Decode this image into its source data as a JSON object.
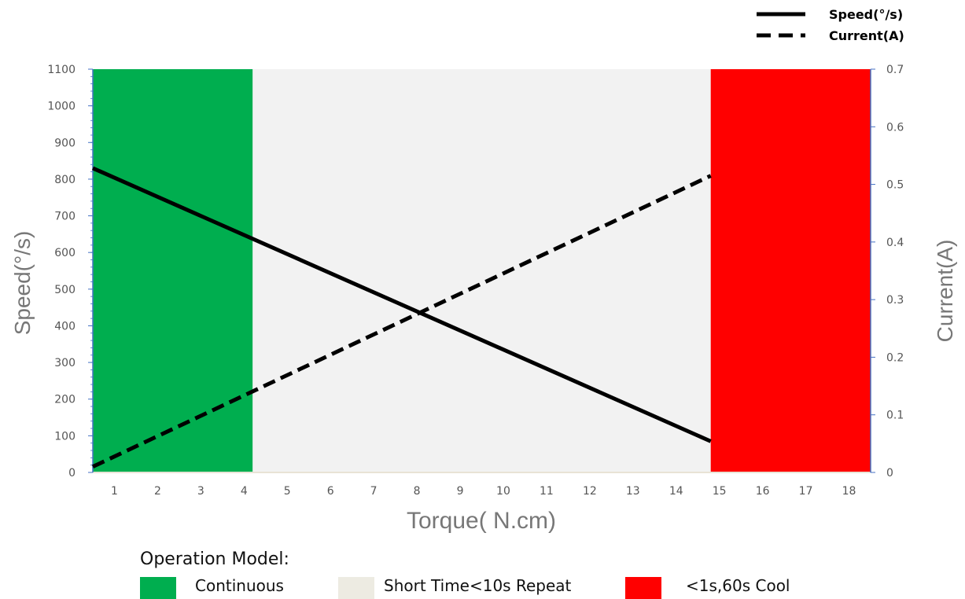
{
  "chart_data": {
    "type": "line",
    "title": "",
    "xlabel": "Torque( N.cm)",
    "ylabel_left": "Speed(°/s)",
    "ylabel_right": "Current(A)",
    "x_ticks": [
      "1",
      "2",
      "3",
      "4",
      "5",
      "6",
      "7",
      "8",
      "9",
      "10",
      "11",
      "12",
      "13",
      "14",
      "15",
      "16",
      "17",
      "18"
    ],
    "y_left_ticks": [
      "0",
      "100",
      "200",
      "300",
      "400",
      "500",
      "600",
      "700",
      "800",
      "900",
      "1000",
      "1100"
    ],
    "y_right_ticks": [
      "0",
      "0.1",
      "0.2",
      "0.3",
      "0.4",
      "0.5",
      "0.6",
      "0.7"
    ],
    "xlim": [
      0.5,
      18.5
    ],
    "ylim_left": [
      0,
      1100
    ],
    "ylim_right": [
      0,
      0.7
    ],
    "grid": false,
    "series": [
      {
        "name": "Speed(°/s)",
        "axis": "left",
        "style": "solid",
        "color": "#000000",
        "x": [
          0.5,
          14.8
        ],
        "y": [
          830,
          85
        ]
      },
      {
        "name": "Current(A)",
        "axis": "right",
        "style": "dashed",
        "color": "#000000",
        "x": [
          0.5,
          14.8
        ],
        "y": [
          0.01,
          0.515
        ]
      }
    ],
    "regions": [
      {
        "label": "Continuous",
        "x_from": 0.5,
        "x_to": 4.2,
        "color": "#00AE4F"
      },
      {
        "label": "Short Time<10s Repeat",
        "x_from": 4.2,
        "x_to": 14.8,
        "color": "#F2F2F2",
        "legend_color": "#EDEBE2"
      },
      {
        "label": "<1s,60s Cool",
        "x_from": 14.8,
        "x_to": 18.5,
        "color": "#FF0000"
      }
    ],
    "legend_heading": "Operation Model:",
    "legend_placement": "top-right"
  }
}
